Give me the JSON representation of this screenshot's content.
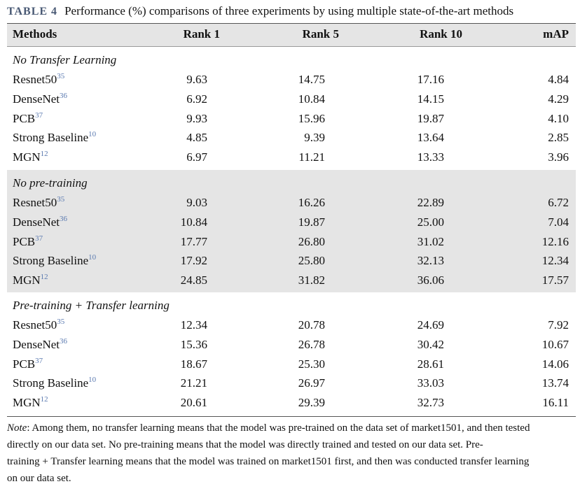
{
  "title": {
    "label": "TABLE 4",
    "text": "Performance (%) comparisons of three experiments by using multiple state-of-the-art methods"
  },
  "table": {
    "columns": [
      "Methods",
      "Rank 1",
      "Rank 5",
      "Rank 10",
      "mAP"
    ],
    "groups": [
      {
        "heading": "No Transfer Learning",
        "rows": [
          {
            "method": "Resnet50",
            "ref": "35",
            "values": [
              "9.63",
              "14.75",
              "17.16",
              "4.84"
            ]
          },
          {
            "method": "DenseNet",
            "ref": "36",
            "values": [
              "6.92",
              "10.84",
              "14.15",
              "4.29"
            ]
          },
          {
            "method": "PCB",
            "ref": "37",
            "values": [
              "9.93",
              "15.96",
              "19.87",
              "4.10"
            ]
          },
          {
            "method": "Strong Baseline",
            "ref": "10",
            "values": [
              "4.85",
              "9.39",
              "13.64",
              "2.85"
            ]
          },
          {
            "method": "MGN",
            "ref": "12",
            "values": [
              "6.97",
              "11.21",
              "13.33",
              "3.96"
            ]
          }
        ]
      },
      {
        "heading": "No pre-training",
        "rows": [
          {
            "method": "Resnet50",
            "ref": "35",
            "values": [
              "9.03",
              "16.26",
              "22.89",
              "6.72"
            ]
          },
          {
            "method": "DenseNet",
            "ref": "36",
            "values": [
              "10.84",
              "19.87",
              "25.00",
              "7.04"
            ]
          },
          {
            "method": "PCB",
            "ref": "37",
            "values": [
              "17.77",
              "26.80",
              "31.02",
              "12.16"
            ]
          },
          {
            "method": "Strong Baseline",
            "ref": "10",
            "values": [
              "17.92",
              "25.80",
              "32.13",
              "12.34"
            ]
          },
          {
            "method": "MGN",
            "ref": "12",
            "values": [
              "24.85",
              "31.82",
              "36.06",
              "17.57"
            ]
          }
        ]
      },
      {
        "heading": "Pre-training + Transfer learning",
        "rows": [
          {
            "method": "Resnet50",
            "ref": "35",
            "values": [
              "12.34",
              "20.78",
              "24.69",
              "7.92"
            ]
          },
          {
            "method": "DenseNet",
            "ref": "36",
            "values": [
              "15.36",
              "26.78",
              "30.42",
              "10.67"
            ]
          },
          {
            "method": "PCB",
            "ref": "37",
            "values": [
              "18.67",
              "25.30",
              "28.61",
              "14.06"
            ]
          },
          {
            "method": "Strong Baseline",
            "ref": "10",
            "values": [
              "21.21",
              "26.97",
              "33.03",
              "13.74"
            ]
          },
          {
            "method": "MGN",
            "ref": "12",
            "values": [
              "20.61",
              "29.39",
              "32.73",
              "16.11"
            ]
          }
        ]
      }
    ]
  },
  "note": {
    "label": "Note",
    "lines": [
      ": Among them, no transfer learning means that the model was pre-trained on the data set of market1501, and then tested",
      "directly on our data set. No pre-training means that the model was directly trained and tested on our data set. Pre-",
      "training + Transfer learning means that the model was trained on market1501 first, and then was conducted transfer learning",
      "on our data set."
    ]
  }
}
